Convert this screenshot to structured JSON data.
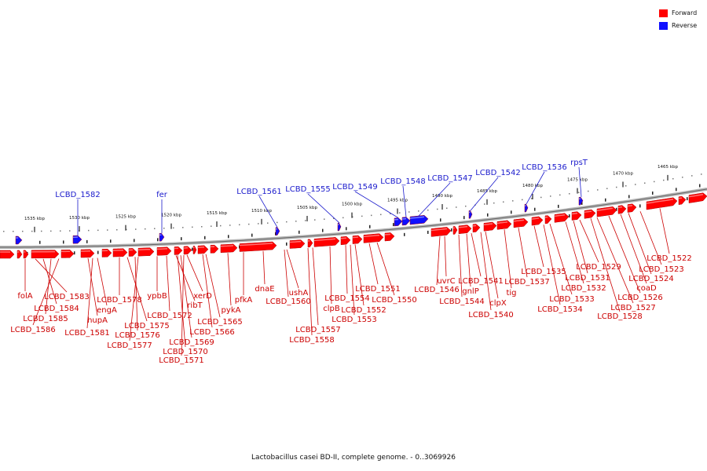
{
  "colors": {
    "forward": "#ff0000",
    "reverse": "#1010ff",
    "axis": "#999999",
    "label_forward": "#cc0000",
    "label_reverse": "#1a1acc"
  },
  "legend": [
    {
      "label": "Forward",
      "color": "#ff0000"
    },
    {
      "label": "Reverse",
      "color": "#1010ff"
    }
  ],
  "caption": "Lactobacillus casei BD-II, complete genome. - 0..3069926",
  "ticks": [
    "1535 kbp",
    "1530 kbp",
    "1525 kbp",
    "1520 kbp",
    "1515 kbp",
    "1510 kbp",
    "1505 kbp",
    "1500 kbp",
    "1495 kbp",
    "1490 kbp",
    "1485 kbp",
    "1480 kbp",
    "1475 kbp",
    "1470 kbp",
    "1465 kbp"
  ],
  "reverse_labels": [
    "LCBD_1582",
    "fer",
    "LCBD_1561",
    "LCBD_1555",
    "LCBD_1549",
    "LCBD_1548",
    "LCBD_1547",
    "LCBD_1542",
    "LCBD_1536",
    "rpsT"
  ],
  "forward_labels": [
    "folA",
    "LCBD_1583",
    "LCBD_1584",
    "LCBD_1585",
    "LCBD_1586",
    "hupA",
    "engA",
    "LCBD_1581",
    "LCBD_1578",
    "LCBD_1575",
    "LCBD_1576",
    "LCBD_1577",
    "ypbB",
    "LCBD_1572",
    "ribT",
    "xerD",
    "LCBD_1569",
    "LCBD_1570",
    "LCBD_1571",
    "LCBD_1565",
    "LCBD_1566",
    "pykA",
    "pfkA",
    "dnaE",
    "ushA",
    "LCBD_1560",
    "LCBD_1557",
    "LCBD_1558",
    "clpB",
    "LCBD_1554",
    "LCBD_1552",
    "LCBD_1553",
    "LCBD_1551",
    "LCBD_1550",
    "uvrC",
    "LCBD_1546",
    "gnlP",
    "LCBD_1541",
    "LCBD_1544",
    "clpX",
    "LCBD_1540",
    "tig",
    "LCBD_1537",
    "LCBD_1535",
    "LCBD_1533",
    "LCBD_1534",
    "LCBD_1531",
    "LCBD_1532",
    "LCBD_1529",
    "LCBD_1527",
    "LCBD_1528",
    "LCBD_1526",
    "coaD",
    "LCBD_1524",
    "LCBD_1523",
    "LCBD_1522"
  ]
}
